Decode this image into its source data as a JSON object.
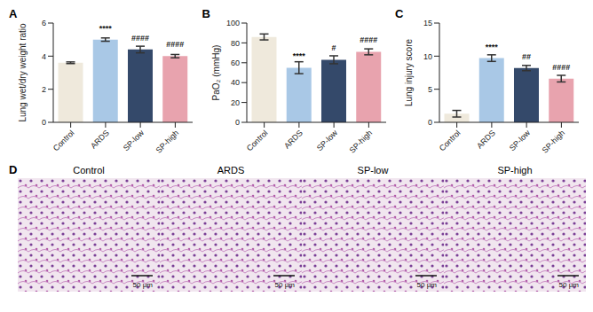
{
  "chart_data": [
    {
      "type": "bar",
      "label": "A",
      "y_label": "Lung wet/dry weight ratio",
      "categories": [
        "Control",
        "ARDS",
        "SP-low",
        "SP-high"
      ],
      "values": [
        3.6,
        5.0,
        4.4,
        4.0
      ],
      "errors": [
        0.05,
        0.1,
        0.2,
        0.1
      ],
      "significance": [
        null,
        "****",
        "####",
        "####"
      ],
      "colors": [
        "#efe9dc",
        "#a9c8e6",
        "#34496a",
        "#e8a3ae"
      ],
      "ylim": [
        0,
        6
      ],
      "yticks": [
        0,
        2,
        4,
        6
      ],
      "grid": false
    },
    {
      "type": "bar",
      "label": "B",
      "y_label": "PaO₂ (mmHg)",
      "categories": [
        "Control",
        "ARDS",
        "SP-low",
        "SP-high"
      ],
      "values": [
        86,
        55,
        63,
        71
      ],
      "errors": [
        3,
        6,
        4,
        3
      ],
      "significance": [
        null,
        "****",
        "#",
        "####"
      ],
      "colors": [
        "#efe9dc",
        "#a9c8e6",
        "#34496a",
        "#e8a3ae"
      ],
      "ylim": [
        0,
        100
      ],
      "yticks": [
        0,
        20,
        40,
        60,
        80,
        100
      ],
      "grid": false
    },
    {
      "type": "bar",
      "label": "C",
      "y_label": "Lung injury score",
      "categories": [
        "Control",
        "ARDS",
        "SP-low",
        "SP-high"
      ],
      "values": [
        1.3,
        9.7,
        8.2,
        6.6
      ],
      "errors": [
        0.5,
        0.5,
        0.4,
        0.5
      ],
      "significance": [
        null,
        "****",
        "##",
        "####"
      ],
      "colors": [
        "#efe9dc",
        "#a9c8e6",
        "#34496a",
        "#e8a3ae"
      ],
      "ylim": [
        0,
        15
      ],
      "yticks": [
        0,
        5,
        10,
        15
      ],
      "grid": false
    }
  ],
  "images": {
    "label": "D",
    "panels": [
      {
        "title": "Control",
        "scale_bar": "50 μm"
      },
      {
        "title": "ARDS",
        "scale_bar": "50 μm"
      },
      {
        "title": "SP-low",
        "scale_bar": "50 μm"
      },
      {
        "title": "SP-high",
        "scale_bar": "50 μm"
      }
    ]
  }
}
